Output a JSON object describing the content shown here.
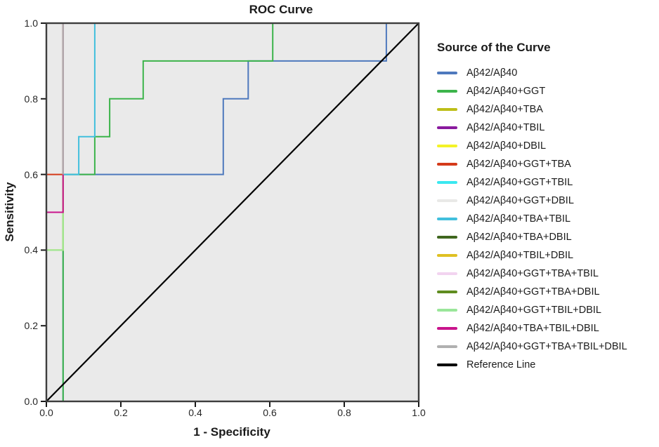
{
  "legend": {
    "title": "Source of the Curve"
  },
  "chart_data": {
    "type": "line",
    "subtype": "roc-step-curves",
    "title": "ROC Curve",
    "xlabel": "1 - Specificity",
    "ylabel": "Sensitivity",
    "xlim": [
      0.0,
      1.0
    ],
    "ylim": [
      0.0,
      1.0
    ],
    "x_ticks": [
      "0.0",
      "0.2",
      "0.4",
      "0.6",
      "0.8",
      "1.0"
    ],
    "y_ticks": [
      "0.0",
      "0.2",
      "0.4",
      "0.6",
      "0.8",
      "1.0"
    ],
    "grid": false,
    "plot_bg": "#eaeaea",
    "frame_color": "#3d3d3d",
    "legend_position": "right",
    "series": [
      {
        "name": "Aβ42/Aβ40",
        "color": "#4e79bd",
        "points": [
          [
            0.045,
            0
          ],
          [
            0.045,
            0.6
          ],
          [
            0.475,
            0.6
          ],
          [
            0.475,
            0.8
          ],
          [
            0.542,
            0.8
          ],
          [
            0.542,
            0.9
          ],
          [
            0.913,
            0.9
          ],
          [
            0.913,
            1
          ],
          [
            1,
            1
          ]
        ]
      },
      {
        "name": "Aβ42/Aβ40+GGT",
        "color": "#3cb44b",
        "points": [
          [
            0.045,
            0
          ],
          [
            0.045,
            0.6
          ],
          [
            0.13,
            0.6
          ],
          [
            0.13,
            0.7
          ],
          [
            0.17,
            0.7
          ],
          [
            0.17,
            0.8
          ],
          [
            0.26,
            0.8
          ],
          [
            0.26,
            0.9
          ],
          [
            0.608,
            0.9
          ],
          [
            0.608,
            1
          ],
          [
            1,
            1
          ]
        ]
      },
      {
        "name": "Aβ42/Aβ40+TBA",
        "color": "#bdbe18",
        "points": [
          [
            0,
            0
          ],
          [
            0,
            0.4
          ],
          [
            0.045,
            0.4
          ],
          [
            0.045,
            1
          ],
          [
            1,
            1
          ]
        ]
      },
      {
        "name": "Aβ42/Aβ40+TBIL",
        "color": "#8a1a9e",
        "points": [
          [
            0,
            0
          ],
          [
            0,
            0.5
          ],
          [
            0.045,
            0.5
          ],
          [
            0.045,
            1
          ],
          [
            1,
            1
          ]
        ]
      },
      {
        "name": "Aβ42/Aβ40+DBIL",
        "color": "#f4f327",
        "points": [
          [
            0,
            0
          ],
          [
            0,
            0.4
          ],
          [
            0.045,
            0.4
          ],
          [
            0.045,
            1
          ],
          [
            1,
            1
          ]
        ]
      },
      {
        "name": "Aβ42/Aβ40+GGT+TBA",
        "color": "#d43a1a",
        "points": [
          [
            0,
            0
          ],
          [
            0,
            0.6
          ],
          [
            0.045,
            0.6
          ],
          [
            0.045,
            1
          ],
          [
            1,
            1
          ]
        ]
      },
      {
        "name": "Aβ42/Aβ40+GGT+TBIL",
        "color": "#3ae8f0",
        "points": [
          [
            0.045,
            0.6
          ],
          [
            0.045,
            1
          ],
          [
            1,
            1
          ]
        ]
      },
      {
        "name": "Aβ42/Aβ40+GGT+DBIL",
        "color": "#e9e9e7",
        "points": [
          [
            0.045,
            0.6
          ],
          [
            0.045,
            1
          ],
          [
            1,
            1
          ]
        ]
      },
      {
        "name": "Aβ42/Aβ40+TBA+TBIL",
        "color": "#41bfdd",
        "points": [
          [
            0.045,
            0.6
          ],
          [
            0.087,
            0.6
          ],
          [
            0.087,
            0.7
          ],
          [
            0.13,
            0.7
          ],
          [
            0.13,
            1
          ],
          [
            1,
            1
          ]
        ]
      },
      {
        "name": "Aβ42/Aβ40+TBA+DBIL",
        "color": "#3f661e",
        "points": [
          [
            0.045,
            0.6
          ],
          [
            0.045,
            1
          ],
          [
            1,
            1
          ]
        ]
      },
      {
        "name": "Aβ42/Aβ40+TBIL+DBIL",
        "color": "#dfc022",
        "points": [
          [
            0.045,
            0.6
          ],
          [
            0.045,
            1
          ],
          [
            1,
            1
          ]
        ]
      },
      {
        "name": "Aβ42/Aβ40+GGT+TBA+TBIL",
        "color": "#f2d4f0",
        "points": [
          [
            0.045,
            0.6
          ],
          [
            0.045,
            1
          ],
          [
            1,
            1
          ]
        ]
      },
      {
        "name": "Aβ42/Aβ40+GGT+TBA+DBIL",
        "color": "#5f8c1f",
        "points": [
          [
            0.045,
            0.6
          ],
          [
            0.045,
            1
          ],
          [
            1,
            1
          ]
        ]
      },
      {
        "name": "Aβ42/Aβ40+GGT+TBIL+DBIL",
        "color": "#9ae69a",
        "points": [
          [
            0,
            0
          ],
          [
            0,
            0.4
          ],
          [
            0.045,
            0.4
          ],
          [
            0.045,
            1
          ],
          [
            1,
            1
          ]
        ]
      },
      {
        "name": "Aβ42/Aβ40+TBA+TBIL+DBIL",
        "color": "#c9148c",
        "points": [
          [
            0,
            0
          ],
          [
            0,
            0.5
          ],
          [
            0.045,
            0.5
          ],
          [
            0.045,
            1
          ],
          [
            1,
            1
          ]
        ]
      },
      {
        "name": "Aβ42/Aβ40+GGT+TBA+TBIL+DBIL",
        "color": "#b0b0b0",
        "points": [
          [
            0.045,
            0.6
          ],
          [
            0.045,
            1
          ],
          [
            1,
            1
          ]
        ]
      },
      {
        "name": "Reference Line",
        "color": "#000000",
        "reference": true,
        "points": [
          [
            0,
            0
          ],
          [
            1,
            1
          ]
        ]
      }
    ]
  }
}
